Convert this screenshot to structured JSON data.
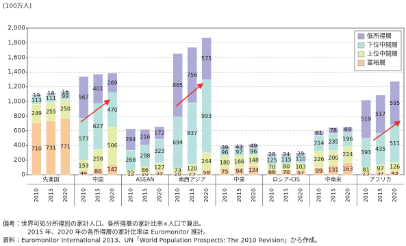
{
  "chart_data": {
    "type": "bar",
    "stacked": true,
    "y_unit": "(100万人)",
    "groups": [
      "先進国",
      "中国",
      "ASEAN",
      "南西アジア",
      "中東",
      "ロシア・CIS",
      "中南米",
      "アフリカ"
    ],
    "categories": [
      "2010",
      "2015",
      "2020"
    ],
    "series": [
      {
        "name": "富裕層",
        "color": "#f9c89b",
        "values": [
          [
            710,
            731,
            771
          ],
          [
            44,
            86,
            142
          ],
          [
            10,
            20,
            35
          ],
          [
            20,
            25,
            58
          ],
          [
            75,
            94,
            124
          ],
          [
            66,
            70,
            57
          ],
          [
            99,
            131,
            163
          ],
          [
            25,
            37,
            43
          ]
        ]
      },
      {
        "name": "上位中間層",
        "color": "#e6ecaa",
        "values": [
          [
            249,
            255,
            250
          ],
          [
            153,
            258,
            506
          ],
          [
            55,
            86,
            127
          ],
          [
            73,
            120,
            244
          ],
          [
            180,
            166,
            148
          ],
          [
            70,
            80,
            103
          ],
          [
            226,
            200,
            224
          ],
          [
            81,
            97,
            126
          ]
        ]
      },
      {
        "name": "下位中間層",
        "color": "#b8e0dc",
        "values": [
          [
            113,
            111,
            99
          ],
          [
            577,
            627,
            470
          ],
          [
            268,
            298,
            323
          ],
          [
            694,
            837,
            993
          ],
          [
            96,
            97,
            96
          ],
          [
            125,
            115,
            110
          ],
          [
            214,
            235,
            196
          ],
          [
            393,
            435,
            511
          ]
        ]
      },
      {
        "name": "低所得層",
        "color": "#aeaad6",
        "values": [
          [
            19,
            18,
            16
          ],
          [
            567,
            401,
            269
          ],
          [
            294,
            216,
            172
          ],
          [
            865,
            756,
            575
          ],
          [
            39,
            43,
            49
          ],
          [
            28,
            24,
            29
          ],
          [
            61,
            78,
            69
          ],
          [
            519,
            517,
            595
          ]
        ]
      }
    ],
    "ylim": [
      0,
      2000
    ],
    "yticks": [
      0,
      200,
      400,
      600,
      800,
      {
        "value": 1000,
        "label": "1,000"
      },
      {
        "value": 1200,
        "label": "1,200"
      },
      {
        "value": 1400,
        "label": "1,400"
      },
      {
        "value": 1600,
        "label": "1,600"
      },
      {
        "value": 1800,
        "label": "1,800"
      },
      {
        "value": 2000,
        "label": "2,000"
      }
    ],
    "grid": true,
    "legend": "upper right"
  },
  "notes": [
    "備考：世界可処分所得別の家計人口。各所得層の家計比率×人口で算出。",
    "2015 年、2020 年の各所得層の家計比率は Euromonitor 推計。",
    "資料：Euromonitor International 2013、UN「World Population Prospects: The 2010 Revision」から作成。"
  ]
}
